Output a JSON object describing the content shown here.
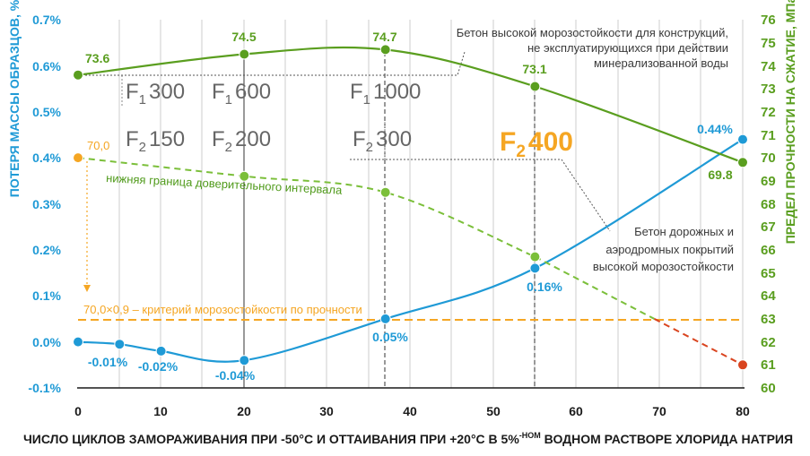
{
  "chart_data": {
    "type": "line",
    "xlabel": "ЧИСЛО ЦИКЛОВ ЗАМОРАЖИВАНИЯ ПРИ -50°С И ОТТАИВАНИЯ ПРИ +20°С В 5%",
    "xlabel_sup": "-НОМ",
    "xlabel_end": " ВОДНОМ РАСТВОРЕ ХЛОРИДА НАТРИЯ",
    "ylabel_left": "ПОТЕРЯ МАССЫ ОБРАЗЦОВ, %",
    "ylabel_right": "ПРЕДЕЛ ПРОЧНОСТИ НА СЖАТИЕ, МПа",
    "xlim": [
      0,
      80
    ],
    "x_ticks": [
      "0",
      "10",
      "20",
      "30",
      "40",
      "50",
      "60",
      "70",
      "80"
    ],
    "ylim_left": [
      -0.1,
      0.7
    ],
    "y_ticks_left": [
      "-0.1%",
      "0.0%",
      "0.1%",
      "0.2%",
      "0.3%",
      "0.4%",
      "0.5%",
      "0.6%",
      "0.7%"
    ],
    "ylim_right": [
      60,
      76
    ],
    "y_ticks_right": [
      "60",
      "61",
      "62",
      "63",
      "64",
      "65",
      "66",
      "67",
      "68",
      "69",
      "70",
      "71",
      "72",
      "73",
      "74",
      "75",
      "76"
    ],
    "grid": "vertical",
    "series": [
      {
        "axis": "left",
        "color": "#1f9ad6",
        "x": [
          0,
          5,
          10,
          20,
          37,
          55,
          80
        ],
        "y": [
          0.0,
          -0.005,
          -0.02,
          -0.04,
          0.05,
          0.16,
          0.44
        ],
        "labels": [
          "",
          "-0.01%",
          "-0.02%",
          "-0.04%",
          "0.05%",
          "0.16%",
          "0.44%"
        ]
      },
      {
        "axis": "right",
        "color": "#5a9e1f",
        "x": [
          0,
          20,
          37,
          55,
          80
        ],
        "y": [
          73.6,
          74.5,
          74.7,
          73.1,
          69.8
        ],
        "labels": [
          "73.6",
          "74.5",
          "74.7",
          "73.1",
          "69.8"
        ]
      },
      {
        "axis": "right",
        "color": "#7bbf3a",
        "style": "dashed",
        "x": [
          0,
          20,
          37,
          55,
          80
        ],
        "y": [
          70.0,
          69.2,
          68.5,
          65.7,
          61.0
        ]
      }
    ],
    "reference": {
      "axis": "right",
      "value": 63,
      "color": "#f5a623",
      "label": "70,0×0,9 – критерий морозостойкости по прочности"
    },
    "start_label": "70,0",
    "annotations": {
      "lower_bound": "нижняя граница доверительного интервала",
      "note_high_lines": [
        "Бетон высокой морозостойкости для конструкций,",
        "не эксплуатирующихся при действии",
        "минерализованной воды"
      ],
      "note_road_lines": [
        "Бетон дорожных и",
        "аэродромных покрытий",
        "высокой морозостойкости"
      ]
    },
    "grades": [
      {
        "letter": "F",
        "sub": "1",
        "num": "300"
      },
      {
        "letter": "F",
        "sub": "1",
        "num": "600"
      },
      {
        "letter": "F",
        "sub": "1",
        "num": "1000"
      },
      {
        "letter": "F",
        "sub": "2",
        "num": "150"
      },
      {
        "letter": "F",
        "sub": "2",
        "num": "200"
      },
      {
        "letter": "F",
        "sub": "2",
        "num": "300"
      },
      {
        "letter": "F",
        "sub": "2",
        "num": "400"
      }
    ]
  }
}
